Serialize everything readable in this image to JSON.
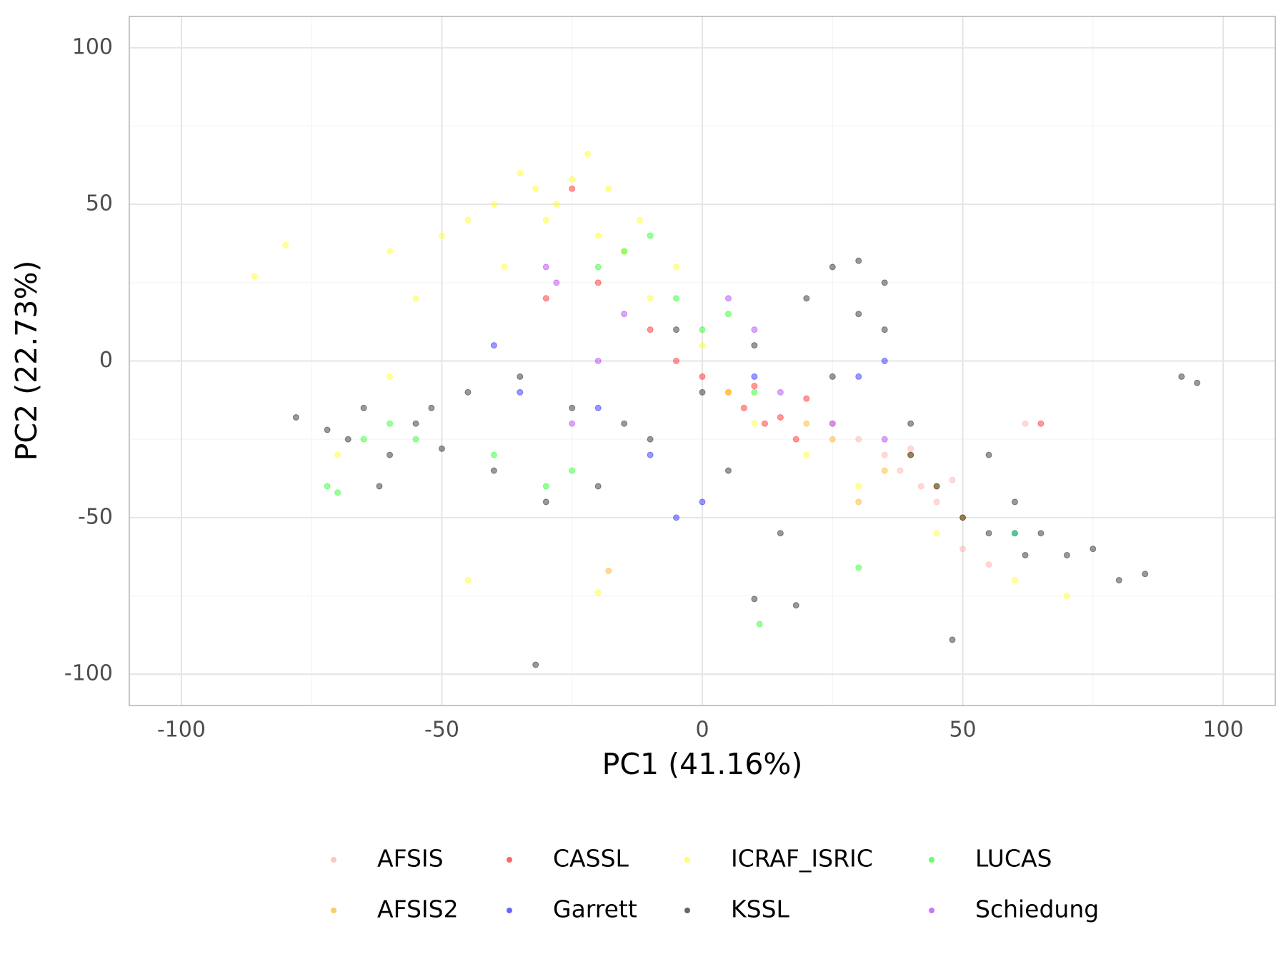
{
  "chart_data": {
    "type": "scatter",
    "x_label": "PC1 (41.16%)",
    "y_label": "PC2 (22.73%)",
    "xlim": [
      -110,
      110
    ],
    "ylim": [
      -110,
      110
    ],
    "xticks": [
      -100,
      -50,
      0,
      50,
      100
    ],
    "yticks": [
      -100,
      -50,
      0,
      50,
      100
    ],
    "xminor": [
      -75,
      -25,
      25,
      75
    ],
    "yminor": [
      -75,
      -25,
      25,
      75
    ],
    "grid": true,
    "legend": "bottom",
    "alpha": 0.4,
    "series": [
      {
        "name": "AFSIS",
        "color": "#ff9f9f",
        "x": [
          25,
          30,
          35,
          38,
          40,
          42,
          45,
          48,
          50,
          55,
          62
        ],
        "y": [
          -20,
          -25,
          -30,
          -35,
          -28,
          -40,
          -45,
          -38,
          -60,
          -65,
          -20
        ]
      },
      {
        "name": "AFSIS2",
        "color": "#ffa500",
        "x": [
          -18,
          25,
          35,
          40,
          45,
          20,
          30,
          50
        ],
        "y": [
          -67,
          -25,
          -35,
          -30,
          -40,
          -20,
          -45,
          -50
        ]
      },
      {
        "name": "CASSL",
        "color": "#ff0000",
        "x": [
          -30,
          -20,
          -10,
          -5,
          0,
          5,
          8,
          10,
          12,
          15,
          18,
          20,
          -25,
          65
        ],
        "y": [
          20,
          25,
          10,
          0,
          -5,
          -10,
          -15,
          -8,
          -20,
          -18,
          -25,
          -12,
          55,
          -20
        ]
      },
      {
        "name": "Garrett",
        "color": "#0000ff",
        "x": [
          -40,
          -35,
          -20,
          -10,
          0,
          10,
          30,
          35,
          60,
          -5
        ],
        "y": [
          5,
          -10,
          -15,
          -30,
          -45,
          -5,
          -5,
          0,
          -55,
          -50
        ]
      },
      {
        "name": "ICRAF_ISRIC",
        "color": "#ffff00",
        "x": [
          -86,
          -80,
          -70,
          -60,
          -55,
          -50,
          -45,
          -40,
          -38,
          -35,
          -32,
          -30,
          -28,
          -25,
          -22,
          -20,
          -18,
          -15,
          -12,
          -10,
          -5,
          0,
          5,
          10,
          20,
          30,
          45,
          60,
          70,
          -45,
          -20,
          -60
        ],
        "y": [
          27,
          37,
          -30,
          35,
          20,
          40,
          45,
          50,
          30,
          60,
          55,
          45,
          50,
          58,
          66,
          40,
          55,
          35,
          45,
          20,
          30,
          5,
          -10,
          -20,
          -30,
          -40,
          -55,
          -70,
          -75,
          -70,
          -74,
          -5
        ]
      },
      {
        "name": "KSSL",
        "color": "#000000",
        "x": [
          -78,
          -72,
          -68,
          -65,
          -60,
          -55,
          -50,
          -45,
          -40,
          -35,
          -30,
          -25,
          -20,
          -15,
          -10,
          -5,
          0,
          5,
          10,
          15,
          20,
          25,
          30,
          35,
          40,
          45,
          50,
          55,
          60,
          65,
          70,
          75,
          80,
          85,
          92,
          95,
          -32,
          25,
          30,
          48,
          -62,
          -52,
          10,
          18,
          40,
          55,
          62,
          35
        ],
        "y": [
          -18,
          -22,
          -25,
          -15,
          -30,
          -20,
          -28,
          -10,
          -35,
          -5,
          -45,
          -15,
          -40,
          -20,
          -25,
          10,
          -10,
          -35,
          5,
          -55,
          20,
          30,
          32,
          10,
          -20,
          -40,
          -50,
          -30,
          -45,
          -55,
          -62,
          -60,
          -70,
          -68,
          -5,
          -7,
          -97,
          -5,
          15,
          -89,
          -40,
          -15,
          -76,
          -78,
          -30,
          -55,
          -62,
          25
        ]
      },
      {
        "name": "LUCAS",
        "color": "#00ff00",
        "x": [
          -72,
          -70,
          -65,
          -60,
          -55,
          -40,
          -30,
          -20,
          -15,
          -10,
          -5,
          0,
          5,
          10,
          11,
          30,
          -25,
          60
        ],
        "y": [
          -40,
          -42,
          -25,
          -20,
          -25,
          -30,
          -40,
          30,
          35,
          40,
          20,
          10,
          15,
          -10,
          -84,
          -66,
          -35,
          -55
        ]
      },
      {
        "name": "Schiedung",
        "color": "#a020f0",
        "x": [
          -30,
          -28,
          -25,
          -15,
          5,
          10,
          15,
          25,
          35,
          -20
        ],
        "y": [
          30,
          25,
          -20,
          15,
          20,
          10,
          -10,
          -20,
          -25,
          0
        ]
      }
    ]
  }
}
